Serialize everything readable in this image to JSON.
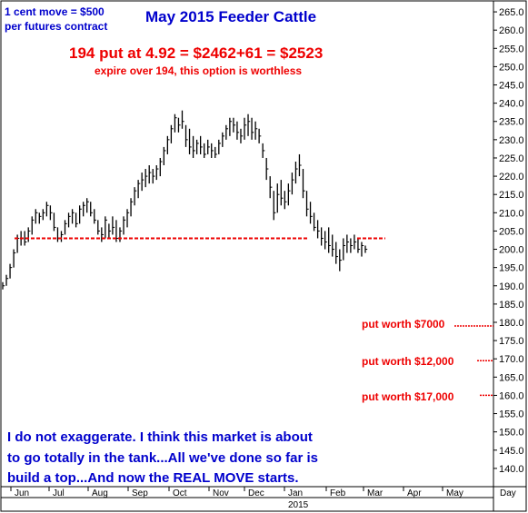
{
  "chart_data": {
    "type": "bar",
    "title": "May 2015 Feeder Cattle",
    "ylim": [
      135,
      268
    ],
    "y_ticks": [
      140,
      145,
      150,
      155,
      160,
      165,
      170,
      175,
      180,
      185,
      190,
      195,
      200,
      205,
      210,
      215,
      220,
      225,
      230,
      235,
      240,
      245,
      250,
      255,
      260,
      265
    ],
    "x_tick_labels": [
      "Jun",
      "Jul",
      "Aug",
      "Sep",
      "Oct",
      "Nov",
      "Dec",
      "Jan",
      "Feb",
      "Mar",
      "Apr",
      "May"
    ],
    "x_year_label": "2015",
    "x_unit_label": "Day",
    "grid": false,
    "series": [
      {
        "values": [
          [
            0,
            191,
            189,
            190
          ],
          [
            4,
            193,
            190,
            192
          ],
          [
            8,
            196,
            192,
            195
          ],
          [
            12,
            200,
            195,
            199
          ],
          [
            16,
            204,
            199,
            203
          ],
          [
            20,
            205,
            201,
            203
          ],
          [
            24,
            205,
            201,
            202
          ],
          [
            28,
            206,
            202,
            205
          ],
          [
            32,
            209,
            204,
            208
          ],
          [
            36,
            211,
            207,
            210
          ],
          [
            40,
            210,
            207,
            209
          ],
          [
            44,
            211,
            208,
            210
          ],
          [
            48,
            213,
            209,
            212
          ],
          [
            52,
            212,
            208,
            210
          ],
          [
            56,
            210,
            205,
            206
          ],
          [
            60,
            206,
            202,
            203
          ],
          [
            64,
            205,
            202,
            204
          ],
          [
            68,
            208,
            204,
            207
          ],
          [
            72,
            210,
            206,
            209
          ],
          [
            76,
            211,
            207,
            210
          ],
          [
            80,
            210,
            206,
            207
          ],
          [
            84,
            212,
            207,
            211
          ],
          [
            88,
            213,
            209,
            212
          ],
          [
            92,
            214,
            210,
            213
          ],
          [
            96,
            213,
            209,
            210
          ],
          [
            100,
            211,
            207,
            208
          ],
          [
            104,
            208,
            204,
            205
          ],
          [
            108,
            206,
            202,
            204
          ],
          [
            112,
            209,
            203,
            208
          ],
          [
            116,
            207,
            203,
            205
          ],
          [
            120,
            209,
            204,
            206
          ],
          [
            124,
            208,
            202,
            203
          ],
          [
            128,
            206,
            202,
            205
          ],
          [
            132,
            209,
            204,
            208
          ],
          [
            136,
            211,
            206,
            210
          ],
          [
            140,
            214,
            209,
            213
          ],
          [
            144,
            217,
            212,
            216
          ],
          [
            148,
            219,
            214,
            218
          ],
          [
            152,
            221,
            216,
            219
          ],
          [
            156,
            222,
            217,
            220
          ],
          [
            160,
            223,
            218,
            221
          ],
          [
            164,
            222,
            218,
            220
          ],
          [
            168,
            223,
            219,
            222
          ],
          [
            172,
            225,
            220,
            224
          ],
          [
            176,
            228,
            223,
            227
          ],
          [
            180,
            231,
            226,
            230
          ],
          [
            184,
            234,
            229,
            233
          ],
          [
            188,
            237,
            232,
            236
          ],
          [
            192,
            236,
            232,
            234
          ],
          [
            196,
            238,
            233,
            235
          ],
          [
            200,
            234,
            228,
            230
          ],
          [
            204,
            233,
            226,
            228
          ],
          [
            208,
            231,
            225,
            227
          ],
          [
            212,
            230,
            226,
            229
          ],
          [
            216,
            231,
            226,
            228
          ],
          [
            220,
            229,
            225,
            226
          ],
          [
            224,
            230,
            226,
            228
          ],
          [
            228,
            229,
            225,
            227
          ],
          [
            232,
            228,
            225,
            226
          ],
          [
            236,
            230,
            226,
            229
          ],
          [
            240,
            232,
            228,
            231
          ],
          [
            244,
            234,
            230,
            233
          ],
          [
            248,
            236,
            231,
            235
          ],
          [
            252,
            236,
            232,
            234
          ],
          [
            256,
            235,
            230,
            232
          ],
          [
            260,
            233,
            229,
            231
          ],
          [
            264,
            236,
            230,
            234
          ],
          [
            268,
            237,
            231,
            235
          ],
          [
            272,
            236,
            230,
            232
          ],
          [
            276,
            235,
            230,
            233
          ],
          [
            280,
            233,
            229,
            231
          ],
          [
            284,
            229,
            225,
            227
          ],
          [
            288,
            225,
            219,
            222
          ],
          [
            292,
            220,
            214,
            217
          ],
          [
            296,
            216,
            208,
            210
          ],
          [
            300,
            218,
            210,
            215
          ],
          [
            304,
            219,
            212,
            214
          ],
          [
            308,
            216,
            211,
            213
          ],
          [
            312,
            218,
            212,
            216
          ],
          [
            316,
            221,
            215,
            219
          ],
          [
            320,
            224,
            218,
            222
          ],
          [
            324,
            226,
            220,
            223
          ],
          [
            328,
            222,
            214,
            216
          ],
          [
            332,
            216,
            209,
            211
          ],
          [
            336,
            213,
            207,
            209
          ],
          [
            340,
            210,
            205,
            206
          ],
          [
            344,
            208,
            203,
            205
          ],
          [
            348,
            206,
            201,
            203
          ],
          [
            352,
            205,
            200,
            202
          ],
          [
            356,
            206,
            199,
            201
          ],
          [
            360,
            204,
            198,
            200
          ],
          [
            364,
            202,
            196,
            198
          ],
          [
            368,
            200,
            194,
            197
          ],
          [
            372,
            203,
            197,
            201
          ],
          [
            376,
            204,
            199,
            202
          ],
          [
            380,
            203,
            199,
            201
          ],
          [
            384,
            204,
            200,
            202
          ],
          [
            388,
            203,
            199,
            200
          ],
          [
            392,
            202,
            198,
            201
          ],
          [
            396,
            201,
            199,
            200
          ]
        ]
      }
    ],
    "support_line_value": 203,
    "annotations": [
      {
        "id": "move",
        "lines": [
          "1 cent move = $500",
          "per futures contract"
        ],
        "color": "#0000cc"
      },
      {
        "id": "put",
        "text": "194 put at 4.92 = $2462+61 = $2523",
        "color": "#ee0000"
      },
      {
        "id": "expire",
        "text": "expire over 194, this option is worthless",
        "color": "#ee0000"
      },
      {
        "id": "put7000",
        "text": "put worth $7000",
        "color": "#ee0000",
        "level": 179
      },
      {
        "id": "put12000",
        "text": "put worth $12,000",
        "color": "#ee0000",
        "level": 169.5
      },
      {
        "id": "put17000",
        "text": "put worth $17,000",
        "color": "#ee0000",
        "level": 160
      },
      {
        "id": "comment",
        "lines": [
          "I do not exaggerate. I think this market is about",
          "to go totally in the tank...All we've done so far is",
          "build a top...And now the REAL MOVE starts."
        ],
        "color": "#0000cc"
      }
    ]
  },
  "colors": {
    "title": "#0000cc",
    "red": "#ee0000",
    "blue": "#0000cc",
    "bars": "#000000",
    "frame": "#000000"
  }
}
